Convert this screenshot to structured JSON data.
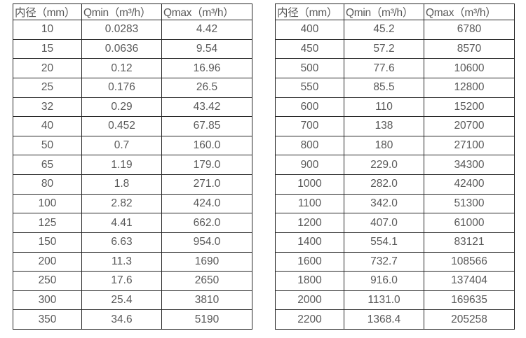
{
  "colors": {
    "background": "#ffffff",
    "border": "#262626",
    "text": "#595959"
  },
  "tables": [
    {
      "name": "flow-table-small-diameters",
      "headers": [
        "内径（mm）",
        "Qmin（m³/h）",
        "Qmax（m³/h）"
      ],
      "rows": [
        [
          "10",
          "0.0283",
          "4.42"
        ],
        [
          "15",
          "0.0636",
          "9.54"
        ],
        [
          "20",
          "0.12",
          "16.96"
        ],
        [
          "25",
          "0.176",
          "26.5"
        ],
        [
          "32",
          "0.29",
          "43.42"
        ],
        [
          "40",
          "0.452",
          "67.85"
        ],
        [
          "50",
          "0.7",
          "160.0"
        ],
        [
          "65",
          "1.19",
          "179.0"
        ],
        [
          "80",
          "1.8",
          "271.0"
        ],
        [
          "100",
          "2.82",
          "424.0"
        ],
        [
          "125",
          "4.41",
          "662.0"
        ],
        [
          "150",
          "6.63",
          "954.0"
        ],
        [
          "200",
          "11.3",
          "1690"
        ],
        [
          "250",
          "17.6",
          "2650"
        ],
        [
          "300",
          "25.4",
          "3810"
        ],
        [
          "350",
          "34.6",
          "5190"
        ]
      ]
    },
    {
      "name": "flow-table-large-diameters",
      "headers": [
        "内径（mm）",
        "Qmin（m³/h）",
        "Qmax（m³/h）"
      ],
      "rows": [
        [
          "400",
          "45.2",
          "6780"
        ],
        [
          "450",
          "57.2",
          "8570"
        ],
        [
          "500",
          "77.6",
          "10600"
        ],
        [
          "550",
          "85.5",
          "12800"
        ],
        [
          "600",
          "110",
          "15200"
        ],
        [
          "700",
          "138",
          "20700"
        ],
        [
          "800",
          "180",
          "27100"
        ],
        [
          "900",
          "229.0",
          "34300"
        ],
        [
          "1000",
          "282.0",
          "42400"
        ],
        [
          "1100",
          "342.0",
          "51300"
        ],
        [
          "1200",
          "407.0",
          "61000"
        ],
        [
          "1400",
          "554.1",
          "83121"
        ],
        [
          "1600",
          "732.7",
          "108566"
        ],
        [
          "1800",
          "916.0",
          "137404"
        ],
        [
          "2000",
          "1131.0",
          "169635"
        ],
        [
          "2200",
          "1368.4",
          "205258"
        ]
      ]
    }
  ]
}
